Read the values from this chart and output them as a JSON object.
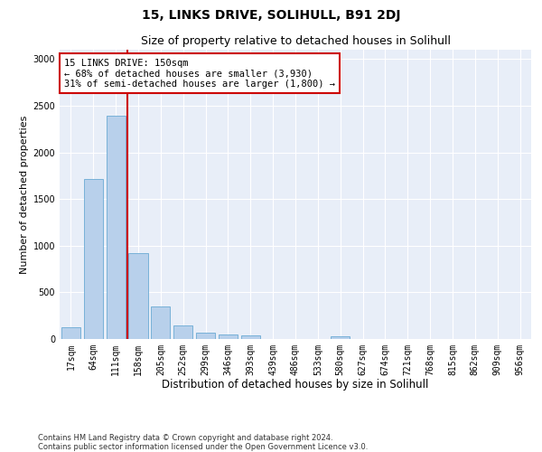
{
  "title1": "15, LINKS DRIVE, SOLIHULL, B91 2DJ",
  "title2": "Size of property relative to detached houses in Solihull",
  "xlabel": "Distribution of detached houses by size in Solihull",
  "ylabel": "Number of detached properties",
  "footnote1": "Contains HM Land Registry data © Crown copyright and database right 2024.",
  "footnote2": "Contains public sector information licensed under the Open Government Licence v3.0.",
  "categories": [
    "17sqm",
    "64sqm",
    "111sqm",
    "158sqm",
    "205sqm",
    "252sqm",
    "299sqm",
    "346sqm",
    "393sqm",
    "439sqm",
    "486sqm",
    "533sqm",
    "580sqm",
    "627sqm",
    "674sqm",
    "721sqm",
    "768sqm",
    "815sqm",
    "862sqm",
    "909sqm",
    "956sqm"
  ],
  "values": [
    130,
    1710,
    2390,
    920,
    350,
    145,
    70,
    45,
    38,
    0,
    0,
    0,
    30,
    0,
    0,
    0,
    0,
    0,
    0,
    0,
    0
  ],
  "bar_color": "#b8d0eb",
  "bar_edgecolor": "#6aaad4",
  "vline_color": "#cc0000",
  "annotation_text": "15 LINKS DRIVE: 150sqm\n← 68% of detached houses are smaller (3,930)\n31% of semi-detached houses are larger (1,800) →",
  "annotation_box_color": "white",
  "annotation_box_edgecolor": "#cc0000",
  "ylim": [
    0,
    3100
  ],
  "yticks": [
    0,
    500,
    1000,
    1500,
    2000,
    2500,
    3000
  ],
  "bg_color": "#e8eef8",
  "fig_bg_color": "#ffffff",
  "title1_fontsize": 10,
  "title2_fontsize": 9,
  "xlabel_fontsize": 8.5,
  "ylabel_fontsize": 8,
  "tick_fontsize": 7,
  "annotation_fontsize": 7.5,
  "footnote_fontsize": 6
}
